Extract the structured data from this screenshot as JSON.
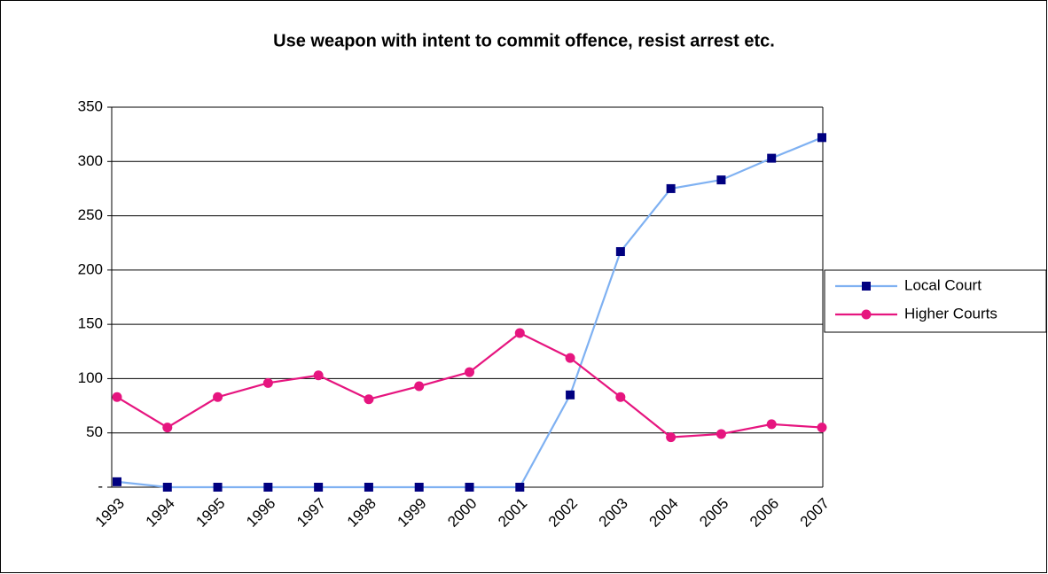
{
  "chart_data": {
    "type": "line",
    "title": "Use weapon with intent to commit offence, resist arrest etc.",
    "categories": [
      "1993",
      "1994",
      "1995",
      "1996",
      "1997",
      "1998",
      "1999",
      "2000",
      "2001",
      "2002",
      "2003",
      "2004",
      "2005",
      "2006",
      "2007"
    ],
    "series": [
      {
        "name": "Local Court",
        "color": "#7fb1f2",
        "marker_color": "#000080",
        "marker": "square",
        "values": [
          5,
          0,
          0,
          0,
          0,
          0,
          0,
          0,
          0,
          85,
          217,
          275,
          283,
          303,
          322
        ]
      },
      {
        "name": "Higher Courts",
        "color": "#e6157f",
        "marker_color": "#e6157f",
        "marker": "circle",
        "values": [
          83,
          55,
          83,
          96,
          103,
          81,
          93,
          106,
          142,
          119,
          83,
          46,
          49,
          58,
          55
        ]
      }
    ],
    "ylim": [
      0,
      350
    ],
    "yticks": [
      {
        "value": 0,
        "label": "-"
      },
      50,
      100,
      150,
      200,
      250,
      300,
      350
    ],
    "grid": true,
    "legend": "right"
  }
}
